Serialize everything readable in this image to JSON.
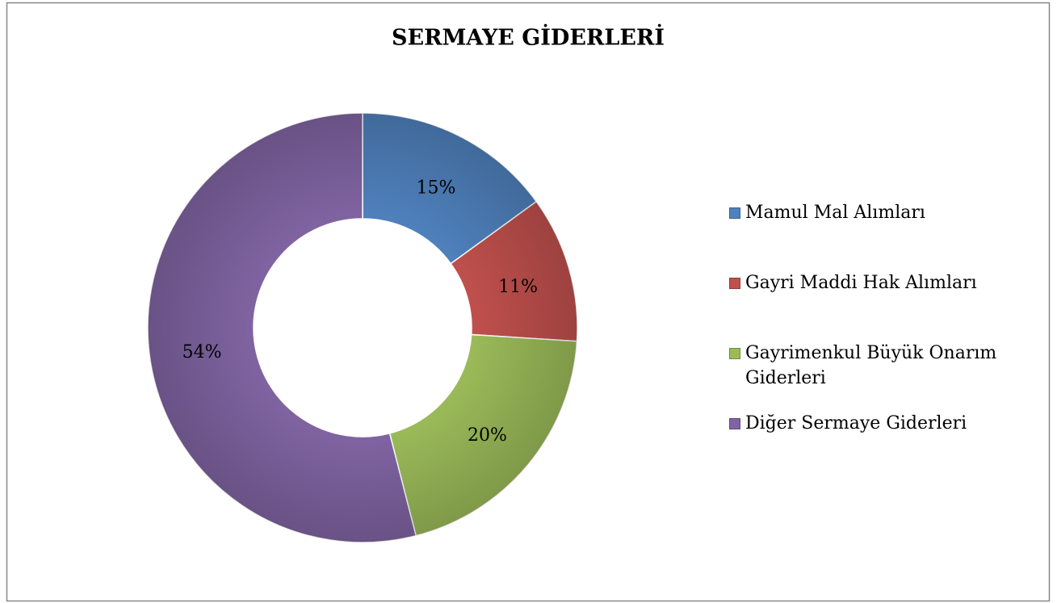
{
  "chart_data": {
    "type": "donut",
    "title": "SERMAYE GİDERLERİ",
    "categories": [
      "Mamul Mal Alımları",
      "Gayri Maddi Hak Alımları",
      "Gayrimenkul Büyük Onarım Giderleri",
      "Diğer Sermaye Giderleri"
    ],
    "values": [
      15,
      11,
      20,
      54
    ],
    "value_labels": [
      "15%",
      "11%",
      "20%",
      "54%"
    ],
    "colors": [
      "#4f81bd",
      "#c0504d",
      "#9bbb59",
      "#8064a2"
    ],
    "legend": "right"
  }
}
